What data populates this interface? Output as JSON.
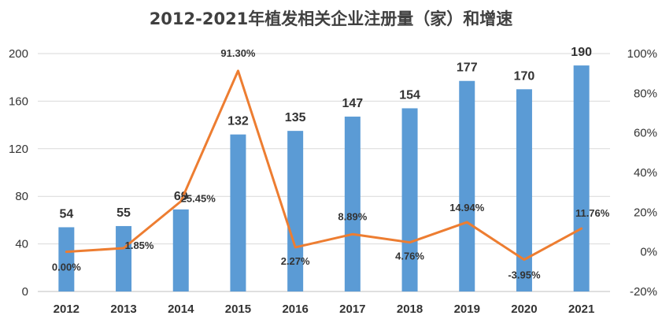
{
  "chart_data": {
    "type": "bar+line",
    "title": "2012-2021年植发相关企业注册量（家）和增速",
    "categories": [
      "2012",
      "2013",
      "2014",
      "2015",
      "2016",
      "2017",
      "2018",
      "2019",
      "2020",
      "2021"
    ],
    "series": [
      {
        "name": "注册量（家）",
        "type": "bar",
        "axis": "left",
        "color": "#5B9BD5",
        "values": [
          54,
          55,
          69,
          132,
          135,
          147,
          154,
          177,
          170,
          190
        ],
        "labels": [
          "54",
          "55",
          "69",
          "132",
          "135",
          "147",
          "154",
          "177",
          "170",
          "190"
        ]
      },
      {
        "name": "增速",
        "type": "line",
        "axis": "right",
        "color": "#ED7D31",
        "values": [
          0.0,
          1.85,
          25.45,
          91.3,
          2.27,
          8.89,
          4.76,
          14.94,
          -3.95,
          11.76
        ],
        "labels": [
          "0.00%",
          "1.85%",
          "25.45%",
          "91.30%",
          "2.27%",
          "8.89%",
          "4.76%",
          "14.94%",
          "-3.95%",
          "11.76%"
        ]
      }
    ],
    "left_axis": {
      "min": 0,
      "max": 200,
      "ticks": [
        "0",
        "40",
        "80",
        "120",
        "160",
        "200"
      ],
      "tick_values": [
        0,
        40,
        80,
        120,
        160,
        200
      ]
    },
    "right_axis": {
      "min": -20,
      "max": 100,
      "ticks": [
        "-20%",
        "0%",
        "20%",
        "40%",
        "60%",
        "80%",
        "100%"
      ],
      "tick_values": [
        -20,
        0,
        20,
        40,
        60,
        80,
        100
      ]
    },
    "grid": true
  }
}
